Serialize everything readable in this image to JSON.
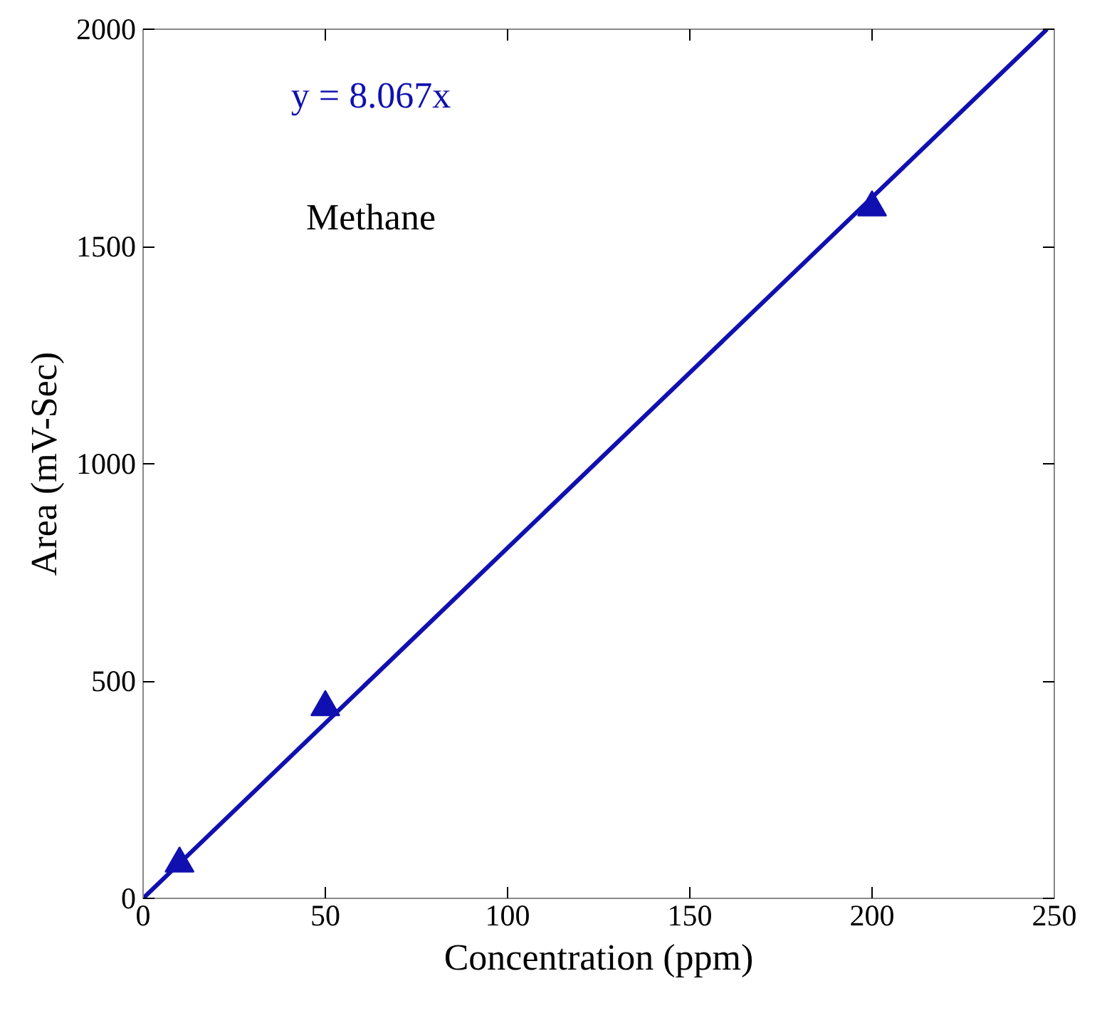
{
  "chart_data": {
    "type": "scatter",
    "xlabel": "Concentration (ppm)",
    "ylabel": "Area (mV-Sec)",
    "annotations": [
      "y = 8.067x",
      "Methane"
    ],
    "series": [
      {
        "color": "#1010b0",
        "x": [
          10,
          50,
          200
        ],
        "values": [
          80,
          440,
          1590
        ],
        "marker": "triangle"
      },
      {
        "type": "line",
        "color": "#1010b0",
        "x": [
          0,
          248
        ],
        "values": [
          0,
          2000
        ]
      }
    ],
    "xlim": [
      0,
      250
    ],
    "ylim": [
      0,
      2000
    ],
    "xticks": [
      0,
      50,
      100,
      150,
      200,
      250
    ],
    "yticks": [
      0,
      500,
      1000,
      1500,
      2000
    ],
    "grid": false
  }
}
